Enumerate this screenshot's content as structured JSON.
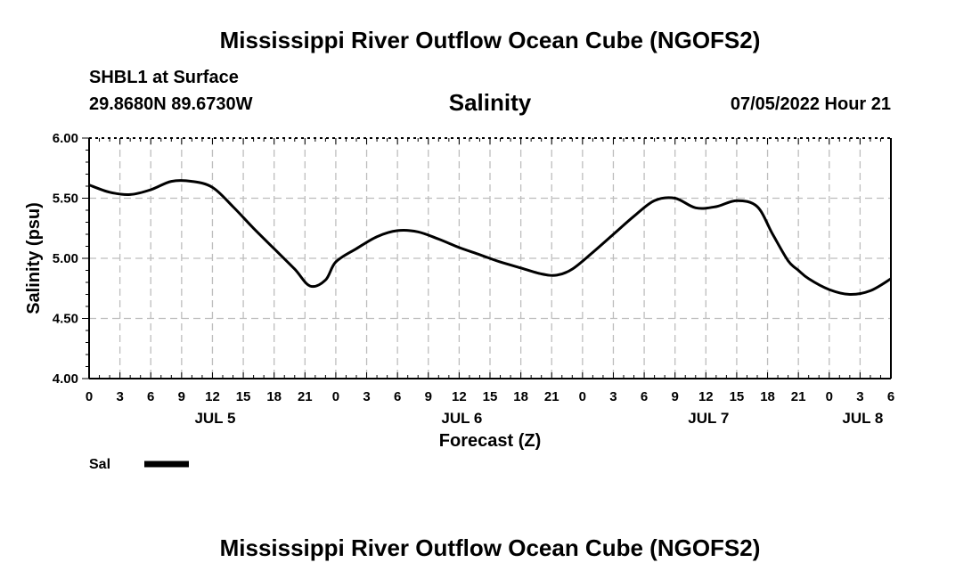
{
  "header": {
    "title_top": "Mississippi River Outflow Ocean Cube (NGOFS2)",
    "title_bottom": "Mississippi River Outflow Ocean Cube (NGOFS2)",
    "station": "SHBL1 at Surface",
    "coords": "29.8680N  89.6730W",
    "datetime": "07/05/2022 Hour 21"
  },
  "legend": {
    "label": "Sal"
  },
  "chart_data": {
    "type": "line",
    "title": "Salinity",
    "xlabel": "Forecast (Z)",
    "ylabel": "Salinity (psu)",
    "ylim": [
      4.0,
      6.0
    ],
    "xlim": [
      0,
      78
    ],
    "yticks": [
      "4.00",
      "4.50",
      "5.00",
      "5.50",
      "6.00"
    ],
    "xtick_labels": [
      "0",
      "3",
      "6",
      "9",
      "12",
      "15",
      "18",
      "21",
      "0",
      "3",
      "6",
      "9",
      "12",
      "15",
      "18",
      "21",
      "0",
      "3",
      "6",
      "9",
      "12",
      "15",
      "18",
      "21",
      "0",
      "3",
      "6"
    ],
    "day_labels": [
      {
        "label": "JUL 5",
        "hour": 12
      },
      {
        "label": "JUL 6",
        "hour": 36
      },
      {
        "label": "JUL 7",
        "hour": 60
      },
      {
        "label": "JUL 8",
        "hour": 75
      }
    ],
    "grid": true,
    "legend_position": "bottom-left",
    "series": [
      {
        "name": "Sal",
        "x": [
          0,
          2,
          4,
          6,
          8,
          10,
          12,
          14,
          16,
          18,
          20,
          21.5,
          23,
          24,
          26,
          28,
          30,
          32,
          34,
          36,
          38,
          40,
          42,
          44,
          45.5,
          47,
          49,
          51,
          53,
          55,
          57,
          59,
          61,
          63,
          65,
          66.5,
          68,
          69,
          70,
          72,
          74,
          76,
          78
        ],
        "y": [
          5.61,
          5.55,
          5.53,
          5.57,
          5.64,
          5.64,
          5.59,
          5.43,
          5.25,
          5.08,
          4.91,
          4.77,
          4.82,
          4.97,
          5.08,
          5.18,
          5.23,
          5.22,
          5.16,
          5.09,
          5.03,
          4.97,
          4.92,
          4.87,
          4.86,
          4.91,
          5.05,
          5.2,
          5.35,
          5.48,
          5.5,
          5.42,
          5.43,
          5.48,
          5.43,
          5.2,
          4.98,
          4.9,
          4.83,
          4.74,
          4.7,
          4.73,
          4.83
        ]
      }
    ]
  }
}
